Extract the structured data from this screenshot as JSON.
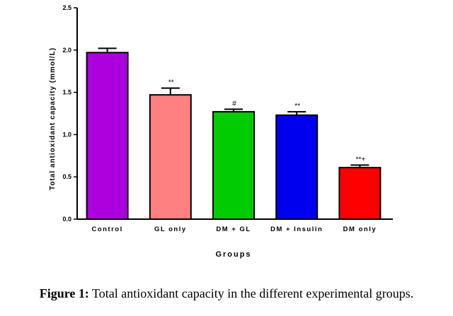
{
  "chart_data": {
    "type": "bar",
    "categories": [
      "Control",
      "GL only",
      "DM + GL",
      "DM + Insulin",
      "DM only"
    ],
    "values": [
      1.97,
      1.47,
      1.27,
      1.23,
      0.61
    ],
    "errors": [
      0.05,
      0.08,
      0.03,
      0.04,
      0.03
    ],
    "annotations": [
      "",
      "**",
      "#",
      "**",
      "**+"
    ],
    "colors": [
      "#AA00DD",
      "#FF8080",
      "#00CC00",
      "#0000EE",
      "#FF0000"
    ],
    "xlabel": "Groups",
    "ylabel": "Total antioxidant capacity (mmol/L)",
    "ylim": [
      0,
      2.5
    ],
    "yticks": [
      "0.0",
      "0.5",
      "1.0",
      "1.5",
      "2.0",
      "2.5"
    ],
    "grid": false,
    "legend": "none"
  },
  "caption": {
    "label": "Figure 1:",
    "text": " Total antioxidant capacity in the different experimental groups."
  }
}
